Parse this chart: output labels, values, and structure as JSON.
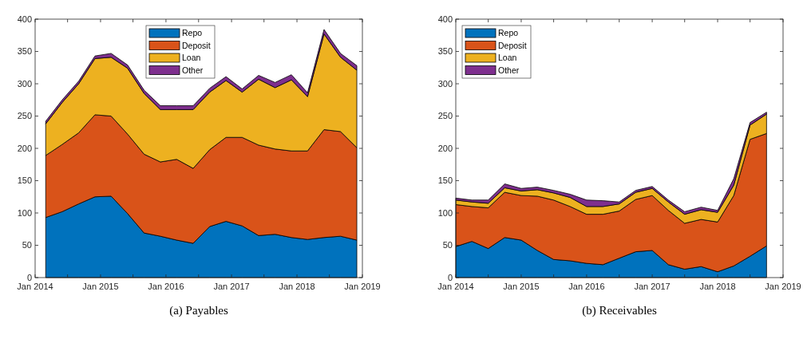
{
  "chart_data": [
    {
      "type": "area",
      "title": "(a) Payables",
      "stacked": true,
      "legend": "top",
      "x": [
        "2014-03",
        "2014-06",
        "2014-09",
        "2014-12",
        "2015-03",
        "2015-06",
        "2015-09",
        "2015-12",
        "2016-03",
        "2016-06",
        "2016-09",
        "2016-12",
        "2017-03",
        "2017-06",
        "2017-09",
        "2017-12",
        "2018-03",
        "2018-06",
        "2018-09",
        "2018-12"
      ],
      "series": [
        {
          "name": "Repo",
          "color": "#0072bd",
          "values": [
            93,
            102,
            114,
            125,
            126,
            99,
            69,
            64,
            58,
            53,
            79,
            87,
            80,
            65,
            67,
            62,
            59,
            62,
            64,
            58
          ]
        },
        {
          "name": "Deposit",
          "color": "#d95319",
          "values": [
            96,
            104,
            110,
            127,
            124,
            123,
            122,
            115,
            125,
            116,
            119,
            130,
            137,
            140,
            132,
            134,
            137,
            167,
            162,
            143
          ]
        },
        {
          "name": "Loan",
          "color": "#edb120",
          "values": [
            49,
            65,
            76,
            87,
            91,
            102,
            94,
            81,
            77,
            91,
            89,
            88,
            70,
            102,
            95,
            110,
            84,
            148,
            115,
            120
          ]
        },
        {
          "name": "Other",
          "color": "#7e2f8e",
          "values": [
            4,
            4,
            4,
            4,
            6,
            5,
            5,
            6,
            6,
            6,
            6,
            6,
            5,
            6,
            8,
            8,
            6,
            7,
            6,
            7
          ]
        }
      ],
      "xlim": [
        "2014-01",
        "2019-01"
      ],
      "xticks": [
        {
          "value": "2014-01",
          "label": "Jan 2014"
        },
        {
          "value": "2014-07",
          "label": null
        },
        {
          "value": "2015-01",
          "label": "Jan 2015"
        },
        {
          "value": "2015-07",
          "label": null
        },
        {
          "value": "2016-01",
          "label": "Jan 2016"
        },
        {
          "value": "2016-07",
          "label": null
        },
        {
          "value": "2017-01",
          "label": "Jan 2017"
        },
        {
          "value": "2017-07",
          "label": null
        },
        {
          "value": "2018-01",
          "label": "Jan 2018"
        },
        {
          "value": "2018-07",
          "label": null
        },
        {
          "value": "2019-01",
          "label": "Jan 2019"
        }
      ],
      "ylim": [
        0,
        400
      ],
      "yticks": [
        0,
        50,
        100,
        150,
        200,
        250,
        300,
        350,
        400
      ]
    },
    {
      "type": "area",
      "title": "(b) Receivables",
      "stacked": true,
      "legend": "top left",
      "x": [
        "2014-01",
        "2014-04",
        "2014-07",
        "2014-10",
        "2015-01",
        "2015-04",
        "2015-07",
        "2015-10",
        "2016-01",
        "2016-04",
        "2016-07",
        "2016-10",
        "2017-01",
        "2017-04",
        "2017-07",
        "2017-10",
        "2018-01",
        "2018-04",
        "2018-07",
        "2018-10"
      ],
      "series": [
        {
          "name": "Repo",
          "color": "#0072bd",
          "values": [
            48,
            56,
            45,
            62,
            58,
            42,
            28,
            26,
            22,
            20,
            30,
            40,
            42,
            20,
            13,
            17,
            9,
            18,
            33,
            49
          ]
        },
        {
          "name": "Deposit",
          "color": "#d95319",
          "values": [
            65,
            54,
            63,
            70,
            69,
            84,
            92,
            84,
            76,
            78,
            73,
            81,
            85,
            84,
            71,
            73,
            77,
            109,
            181,
            174
          ]
        },
        {
          "name": "Loan",
          "color": "#edb120",
          "values": [
            7,
            7,
            7,
            7,
            7,
            10,
            11,
            14,
            12,
            12,
            11,
            11,
            11,
            13,
            14,
            15,
            15,
            16,
            22,
            30
          ]
        },
        {
          "name": "Other",
          "color": "#7e2f8e",
          "values": [
            3,
            3,
            5,
            6,
            4,
            4,
            4,
            5,
            10,
            9,
            3,
            3,
            3,
            3,
            4,
            4,
            3,
            10,
            4,
            3
          ]
        }
      ],
      "xlim": [
        "2014-01",
        "2019-01"
      ],
      "xticks": [
        {
          "value": "2014-01",
          "label": "Jan 2014"
        },
        {
          "value": "2014-07",
          "label": null
        },
        {
          "value": "2015-01",
          "label": "Jan 2015"
        },
        {
          "value": "2015-07",
          "label": null
        },
        {
          "value": "2016-01",
          "label": "Jan 2016"
        },
        {
          "value": "2016-07",
          "label": null
        },
        {
          "value": "2017-01",
          "label": "Jan 2017"
        },
        {
          "value": "2017-07",
          "label": null
        },
        {
          "value": "2018-01",
          "label": "Jan 2018"
        },
        {
          "value": "2018-07",
          "label": null
        },
        {
          "value": "2019-01",
          "label": "Jan 2019"
        }
      ],
      "ylim": [
        0,
        400
      ],
      "yticks": [
        0,
        50,
        100,
        150,
        200,
        250,
        300,
        350,
        400
      ]
    }
  ]
}
